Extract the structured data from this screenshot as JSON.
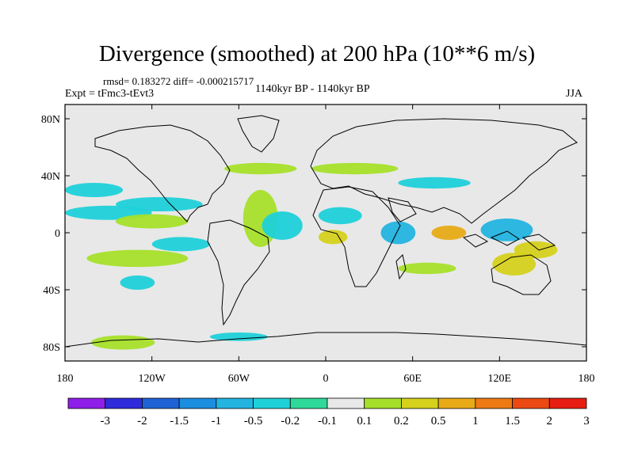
{
  "chart_data": {
    "type": "heatmap",
    "title": "Divergence (smoothed) at 200 hPa (10**6 m/s)",
    "stats_text": "rmsd= 0.183272 diff= -0.000215717",
    "left_label": "Expt = tFmc3-tEvt3",
    "center_label": "1140kyr BP - 1140kyr BP",
    "right_label": "JJA",
    "x_ticks": [
      "180",
      "120W",
      "60W",
      "0",
      "60E",
      "120E",
      "180"
    ],
    "x_tick_values": [
      -180,
      -120,
      -60,
      0,
      60,
      120,
      180
    ],
    "y_ticks": [
      "80N",
      "40N",
      "0",
      "40S",
      "80S"
    ],
    "y_tick_values": [
      80,
      40,
      0,
      -40,
      -80
    ],
    "xlim": [
      -180,
      180
    ],
    "ylim": [
      -90,
      90
    ],
    "colorbar": {
      "labels": [
        "-3",
        "-2",
        "-1.5",
        "-1",
        "-0.5",
        "-0.2",
        "-0.1",
        "0.1",
        "0.2",
        "0.5",
        "1",
        "1.5",
        "2",
        "3"
      ],
      "colors": [
        "#8f1fe8",
        "#2f2bdb",
        "#1f62d6",
        "#1c8ee0",
        "#23b4e0",
        "#1fd1d9",
        "#2ed99a",
        "#e8e8e8",
        "#a6e02a",
        "#d6d11c",
        "#e8ab17",
        "#ee7a14",
        "#ec4a12",
        "#e81e12"
      ]
    },
    "features": [
      {
        "name": "central-pacific-convergence",
        "lon": -160,
        "lat": 30,
        "rx": 20,
        "ry": 5,
        "class": "-0.2"
      },
      {
        "name": "north-pacific-band",
        "lon": -150,
        "lat": 14,
        "rx": 30,
        "ry": 5,
        "class": "-0.2"
      },
      {
        "name": "pacific-itcz-divergence",
        "lon": -120,
        "lat": 8,
        "rx": 25,
        "ry": 5,
        "class": "0.2"
      },
      {
        "name": "pacific-convergence-band",
        "lon": -115,
        "lat": 20,
        "rx": 30,
        "ry": 5,
        "class": "-0.2"
      },
      {
        "name": "south-pacific-band",
        "lon": -130,
        "lat": -18,
        "rx": 35,
        "ry": 6,
        "class": "0.2"
      },
      {
        "name": "south-pacific-convergence",
        "lon": -100,
        "lat": -8,
        "rx": 20,
        "ry": 5,
        "class": "-0.2"
      },
      {
        "name": "far-south-pacific",
        "lon": -130,
        "lat": -35,
        "rx": 12,
        "ry": 5,
        "class": "-0.2"
      },
      {
        "name": "atlantic-divergence",
        "lon": -45,
        "lat": 10,
        "rx": 12,
        "ry": 20,
        "class": "0.2"
      },
      {
        "name": "atlantic-convergence",
        "lon": -30,
        "lat": 5,
        "rx": 14,
        "ry": 10,
        "class": "-0.2"
      },
      {
        "name": "africa-convergence",
        "lon": 10,
        "lat": 12,
        "rx": 15,
        "ry": 6,
        "class": "-0.2"
      },
      {
        "name": "gulf-of-guinea",
        "lon": 5,
        "lat": -3,
        "rx": 10,
        "ry": 5,
        "class": "0.5"
      },
      {
        "name": "indian-ocean-convergence",
        "lon": 50,
        "lat": 0,
        "rx": 12,
        "ry": 8,
        "class": "-0.5"
      },
      {
        "name": "indian-divergence",
        "lon": 85,
        "lat": 0,
        "rx": 12,
        "ry": 5,
        "class": "1"
      },
      {
        "name": "maritime-continent-convergence",
        "lon": 125,
        "lat": 2,
        "rx": 18,
        "ry": 8,
        "class": "-0.5"
      },
      {
        "name": "west-pacific-divergence",
        "lon": 145,
        "lat": -12,
        "rx": 15,
        "ry": 6,
        "class": "0.5"
      },
      {
        "name": "south-indian-band",
        "lon": 70,
        "lat": -25,
        "rx": 20,
        "ry": 4,
        "class": "0.2"
      },
      {
        "name": "australia-band",
        "lon": 130,
        "lat": -22,
        "rx": 15,
        "ry": 8,
        "class": "0.5"
      },
      {
        "name": "antarctic-divergence",
        "lon": -140,
        "lat": -77,
        "rx": 22,
        "ry": 5,
        "class": "0.2"
      },
      {
        "name": "antarctic-convergence",
        "lon": -60,
        "lat": -73,
        "rx": 20,
        "ry": 3,
        "class": "-0.2"
      },
      {
        "name": "north-atlantic-band",
        "lon": -45,
        "lat": 45,
        "rx": 25,
        "ry": 4,
        "class": "0.2"
      },
      {
        "name": "europe-band",
        "lon": 20,
        "lat": 45,
        "rx": 30,
        "ry": 4,
        "class": "0.2"
      },
      {
        "name": "asia-band",
        "lon": 75,
        "lat": 35,
        "rx": 25,
        "ry": 4,
        "class": "-0.2"
      }
    ]
  }
}
